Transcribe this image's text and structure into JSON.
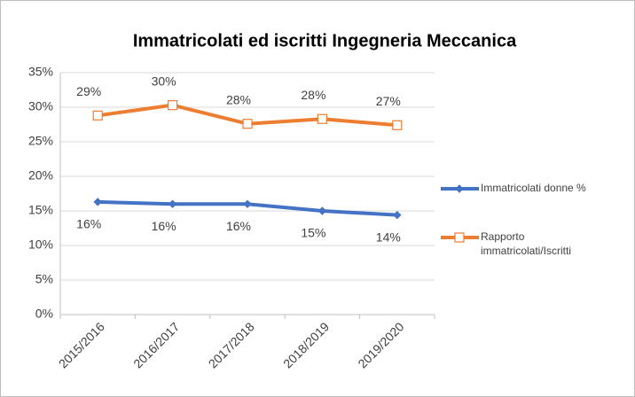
{
  "chart_data": {
    "type": "line",
    "title": "Immatricolati ed iscritti Ingegneria Meccanica",
    "categories": [
      "2015/2016",
      "2016/2017",
      "2017/2018",
      "2018/2019",
      "2019/2020"
    ],
    "series": [
      {
        "name": "Immatricolati donne %",
        "color": "#4472c4",
        "marker": "diamond",
        "values": [
          16.3,
          16.0,
          16.0,
          15.0,
          14.4
        ],
        "value_labels": [
          "16%",
          "16%",
          "16%",
          "15%",
          "14%"
        ]
      },
      {
        "name": "Rapporto immatricolati/Iscritti",
        "color": "#ed7d31",
        "marker": "square",
        "values": [
          28.8,
          30.3,
          27.6,
          28.3,
          27.4
        ],
        "value_labels": [
          "29%",
          "30%",
          "28%",
          "28%",
          "27%"
        ]
      }
    ],
    "ylim": [
      0,
      35
    ],
    "yticks": [
      {
        "value": 0,
        "label": "0%"
      },
      {
        "value": 5,
        "label": "5%"
      },
      {
        "value": 10,
        "label": "10%"
      },
      {
        "value": 15,
        "label": "15%"
      },
      {
        "value": 20,
        "label": "20%"
      },
      {
        "value": 25,
        "label": "25%"
      },
      {
        "value": 30,
        "label": "30%"
      },
      {
        "value": 35,
        "label": "35%"
      }
    ],
    "grid": true,
    "legend": "right"
  }
}
